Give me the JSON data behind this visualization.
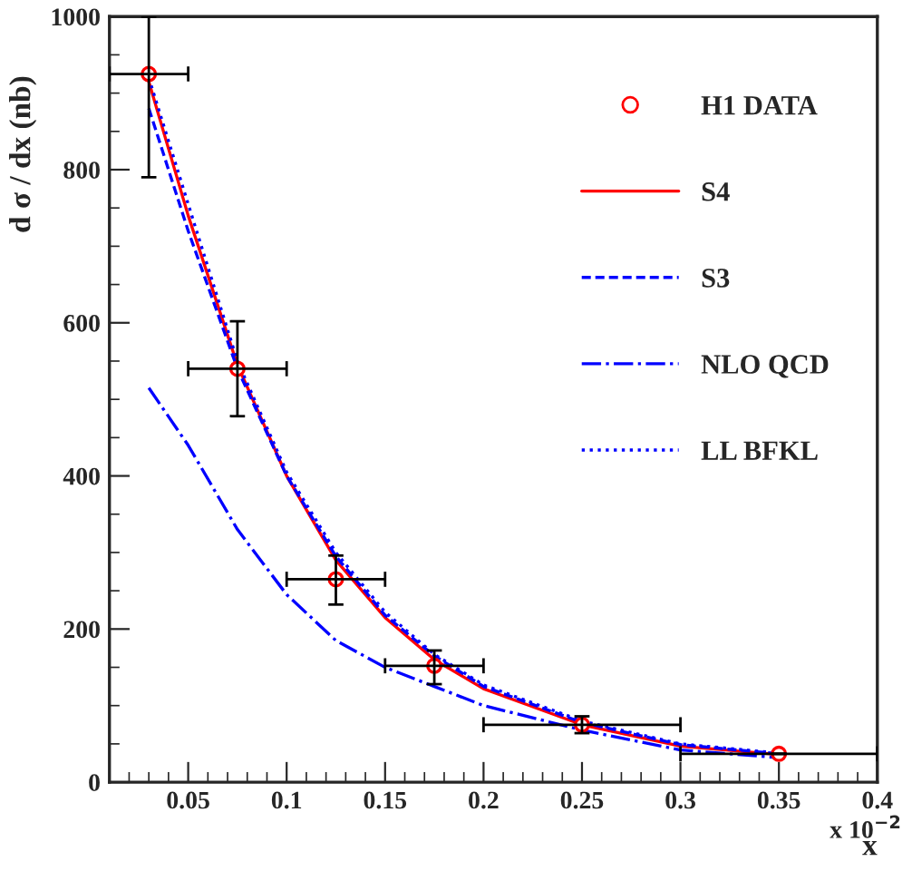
{
  "chart_data": {
    "type": "line",
    "xlabel": "x",
    "ylabel": "d σ / dx (nb)",
    "annotations": [
      "x 10$^{−2}$"
    ],
    "xlim": [
      0.01,
      0.4
    ],
    "xticks": [
      0.05,
      0.1,
      0.15,
      0.2,
      0.25,
      0.3,
      0.35,
      0.4
    ],
    "ylim": [
      0,
      1000
    ],
    "yticks": [
      0,
      200,
      400,
      600,
      800,
      1000
    ],
    "grid": false,
    "legend": "top right",
    "series": [
      {
        "name": "H1 DATA",
        "type": "scatter",
        "marker": "circle",
        "color": "#ff0000",
        "x": [
          0.03,
          0.075,
          0.125,
          0.175,
          0.25,
          0.35
        ],
        "values": [
          925,
          540,
          265,
          152,
          75,
          37
        ],
        "errors": [
          [
            790,
            1000
          ],
          [
            478,
            602
          ],
          [
            232,
            296
          ],
          [
            128,
            172
          ],
          [
            64,
            86
          ],
          null
        ],
        "xerrors": [
          [
            0.01,
            0.05
          ],
          [
            0.05,
            0.1
          ],
          [
            0.1,
            0.15
          ],
          [
            0.15,
            0.2
          ],
          [
            0.2,
            0.3
          ],
          [
            0.3,
            0.4
          ]
        ]
      },
      {
        "name": "S4",
        "color": "#ff0000",
        "line_style": "solid",
        "x": [
          0.03,
          0.05,
          0.075,
          0.1,
          0.125,
          0.15,
          0.175,
          0.2,
          0.25,
          0.3,
          0.35
        ],
        "values": [
          915,
          740,
          545,
          400,
          290,
          215,
          160,
          122,
          75,
          47,
          36
        ]
      },
      {
        "name": "S3",
        "color": "#0000ff",
        "line_style": "dashed",
        "x": [
          0.03,
          0.05,
          0.075,
          0.1,
          0.125,
          0.15,
          0.175,
          0.2,
          0.25,
          0.3,
          0.35
        ],
        "values": [
          880,
          720,
          540,
          400,
          295,
          218,
          165,
          125,
          78,
          49,
          37
        ]
      },
      {
        "name": "NLO QCD",
        "color": "#0000ff",
        "line_style": "dashdot",
        "x": [
          0.03,
          0.05,
          0.075,
          0.1,
          0.125,
          0.15,
          0.175,
          0.2,
          0.25,
          0.3,
          0.35
        ],
        "values": [
          515,
          440,
          330,
          245,
          185,
          150,
          125,
          100,
          68,
          42,
          32
        ]
      },
      {
        "name": "LL BFKL",
        "color": "#0000ff",
        "line_style": "dotted",
        "x": [
          0.03,
          0.05,
          0.075,
          0.1,
          0.125,
          0.15,
          0.175,
          0.2,
          0.25,
          0.3,
          0.35
        ],
        "values": [
          920,
          755,
          550,
          405,
          300,
          222,
          167,
          127,
          80,
          50,
          38
        ]
      }
    ]
  }
}
